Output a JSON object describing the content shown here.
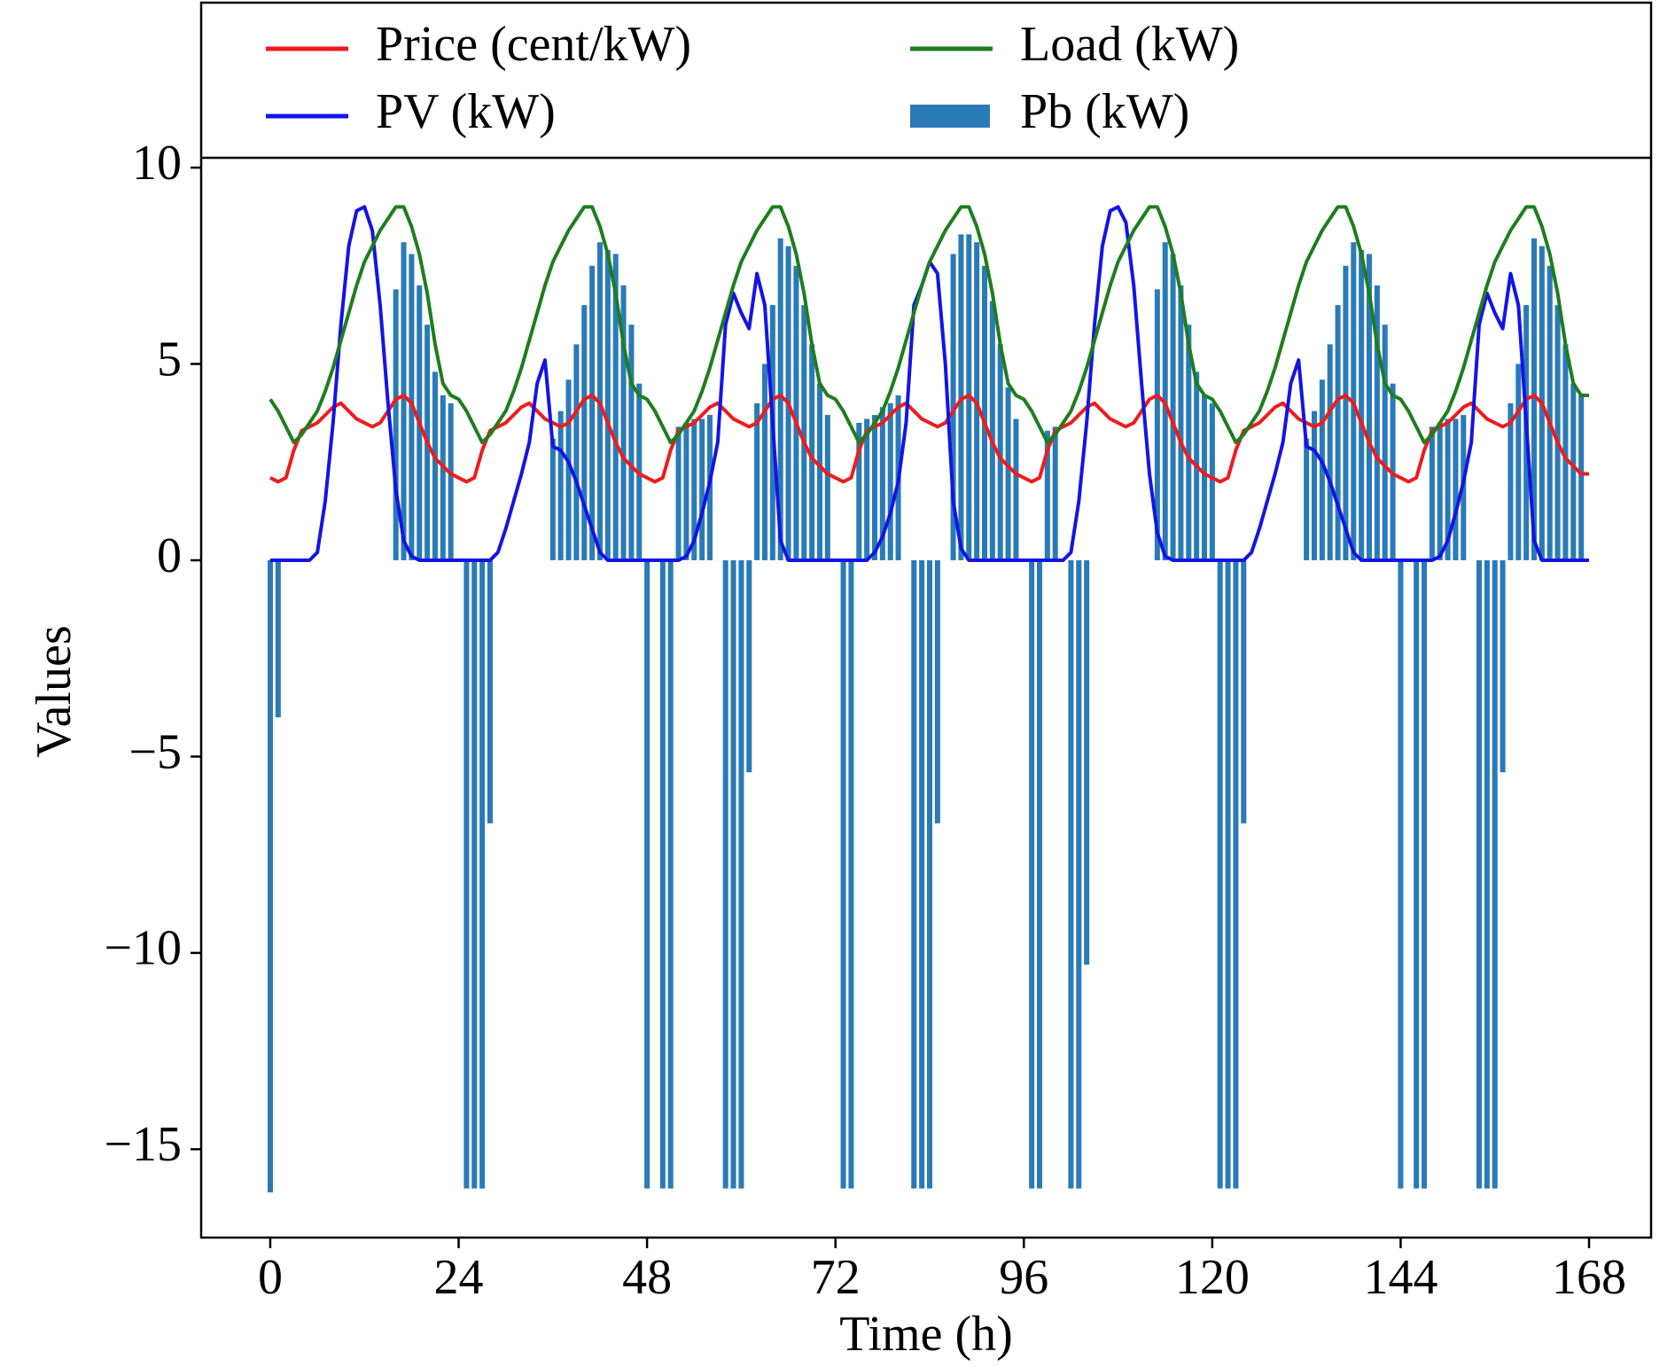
{
  "chart_data": {
    "type": "line",
    "xlabel": "Time (h)",
    "ylabel": "Values",
    "x": [
      0,
      1,
      2,
      3,
      4,
      5,
      6,
      7,
      8,
      9,
      10,
      11,
      12,
      13,
      14,
      15,
      16,
      17,
      18,
      19,
      20,
      21,
      22,
      23,
      24,
      25,
      26,
      27,
      28,
      29,
      30,
      31,
      32,
      33,
      34,
      35,
      36,
      37,
      38,
      39,
      40,
      41,
      42,
      43,
      44,
      45,
      46,
      47,
      48,
      49,
      50,
      51,
      52,
      53,
      54,
      55,
      56,
      57,
      58,
      59,
      60,
      61,
      62,
      63,
      64,
      65,
      66,
      67,
      68,
      69,
      70,
      71,
      72,
      73,
      74,
      75,
      76,
      77,
      78,
      79,
      80,
      81,
      82,
      83,
      84,
      85,
      86,
      87,
      88,
      89,
      90,
      91,
      92,
      93,
      94,
      95,
      96,
      97,
      98,
      99,
      100,
      101,
      102,
      103,
      104,
      105,
      106,
      107,
      108,
      109,
      110,
      111,
      112,
      113,
      114,
      115,
      116,
      117,
      118,
      119,
      120,
      121,
      122,
      123,
      124,
      125,
      126,
      127,
      128,
      129,
      130,
      131,
      132,
      133,
      134,
      135,
      136,
      137,
      138,
      139,
      140,
      141,
      142,
      143,
      144,
      145,
      146,
      147,
      148,
      149,
      150,
      151,
      152,
      153,
      154,
      155,
      156,
      157,
      158,
      159,
      160,
      161,
      162,
      163,
      164,
      165,
      166,
      167,
      168
    ],
    "series": [
      {
        "name": "Price (cent/kW)",
        "color": "#ee1c1c",
        "type": "line",
        "values": [
          2.1,
          2.0,
          2.1,
          2.8,
          3.3,
          3.4,
          3.5,
          3.7,
          3.9,
          4.0,
          3.8,
          3.6,
          3.5,
          3.4,
          3.5,
          3.8,
          4.1,
          4.2,
          4.0,
          3.5,
          3.0,
          2.6,
          2.4,
          2.2,
          2.1,
          2.0,
          2.1,
          2.8,
          3.3,
          3.4,
          3.5,
          3.7,
          3.9,
          4.0,
          3.8,
          3.6,
          3.5,
          3.4,
          3.5,
          3.8,
          4.1,
          4.2,
          4.0,
          3.5,
          3.0,
          2.6,
          2.4,
          2.2,
          2.1,
          2.0,
          2.1,
          2.8,
          3.3,
          3.4,
          3.5,
          3.7,
          3.9,
          4.0,
          3.8,
          3.6,
          3.5,
          3.4,
          3.5,
          3.8,
          4.1,
          4.2,
          4.0,
          3.5,
          3.0,
          2.6,
          2.4,
          2.2,
          2.1,
          2.0,
          2.1,
          2.8,
          3.3,
          3.4,
          3.5,
          3.7,
          3.9,
          4.0,
          3.8,
          3.6,
          3.5,
          3.4,
          3.5,
          3.8,
          4.1,
          4.2,
          4.0,
          3.5,
          3.0,
          2.6,
          2.4,
          2.2,
          2.1,
          2.0,
          2.1,
          2.8,
          3.3,
          3.4,
          3.5,
          3.7,
          3.9,
          4.0,
          3.8,
          3.6,
          3.5,
          3.4,
          3.5,
          3.8,
          4.1,
          4.2,
          4.0,
          3.5,
          3.0,
          2.6,
          2.4,
          2.2,
          2.1,
          2.0,
          2.1,
          2.8,
          3.3,
          3.4,
          3.5,
          3.7,
          3.9,
          4.0,
          3.8,
          3.6,
          3.5,
          3.4,
          3.5,
          3.8,
          4.1,
          4.2,
          4.0,
          3.5,
          3.0,
          2.6,
          2.4,
          2.2,
          2.1,
          2.0,
          2.1,
          2.8,
          3.3,
          3.4,
          3.5,
          3.7,
          3.9,
          4.0,
          3.8,
          3.6,
          3.5,
          3.4,
          3.5,
          3.8,
          4.1,
          4.2,
          4.0,
          3.5,
          3.0,
          2.6,
          2.4,
          2.2,
          2.2
        ]
      },
      {
        "name": "PV (kW)",
        "color": "#1414e6",
        "type": "line",
        "values": [
          0,
          0,
          0,
          0,
          0,
          0,
          0.2,
          1.5,
          3.5,
          6.0,
          8.0,
          8.9,
          9.0,
          8.4,
          6.5,
          4.0,
          1.8,
          0.5,
          0.1,
          0,
          0,
          0,
          0,
          0,
          0,
          0,
          0,
          0,
          0,
          0.2,
          0.8,
          1.5,
          2.2,
          3.0,
          4.5,
          5.1,
          2.9,
          2.8,
          2.5,
          2.0,
          1.4,
          0.8,
          0.2,
          0,
          0,
          0,
          0,
          0,
          0,
          0,
          0,
          0,
          0,
          0.1,
          0.5,
          1.2,
          2.0,
          3.0,
          6.0,
          6.8,
          6.3,
          5.9,
          7.3,
          6.5,
          3.5,
          0.5,
          0,
          0,
          0,
          0,
          0,
          0,
          0,
          0,
          0,
          0,
          0,
          0.2,
          0.6,
          1.2,
          2.0,
          3.5,
          6.5,
          7.0,
          7.6,
          7.3,
          5.0,
          1.5,
          0.3,
          0,
          0,
          0,
          0,
          0,
          0,
          0,
          0,
          0,
          0,
          0,
          0,
          0,
          0.2,
          1.5,
          3.5,
          6.0,
          8.0,
          8.9,
          9.0,
          8.6,
          7.0,
          4.5,
          2.2,
          0.7,
          0.1,
          0,
          0,
          0,
          0,
          0,
          0,
          0,
          0,
          0,
          0,
          0.2,
          0.8,
          1.5,
          2.2,
          3.0,
          4.5,
          5.1,
          2.9,
          2.8,
          2.5,
          2.0,
          1.4,
          0.8,
          0.2,
          0,
          0,
          0,
          0,
          0,
          0,
          0,
          0,
          0,
          0,
          0.1,
          0.5,
          1.2,
          2.0,
          3.0,
          6.0,
          6.8,
          6.3,
          5.9,
          7.3,
          6.5,
          3.5,
          0.5,
          0,
          0,
          0,
          0,
          0,
          0,
          0
        ]
      },
      {
        "name": "Load (kW)",
        "color": "#1e7d1e",
        "type": "line",
        "values": [
          4.1,
          3.8,
          3.4,
          3.0,
          3.2,
          3.5,
          3.8,
          4.3,
          4.9,
          5.6,
          6.3,
          7.0,
          7.6,
          8.0,
          8.4,
          8.7,
          9.0,
          9.0,
          8.5,
          7.8,
          6.8,
          5.5,
          4.5,
          4.2,
          4.1,
          3.8,
          3.4,
          3.0,
          3.2,
          3.5,
          3.8,
          4.3,
          4.9,
          5.6,
          6.3,
          7.0,
          7.6,
          8.0,
          8.4,
          8.7,
          9.0,
          9.0,
          8.5,
          7.8,
          6.8,
          5.5,
          4.5,
          4.2,
          4.1,
          3.8,
          3.4,
          3.0,
          3.2,
          3.5,
          3.8,
          4.3,
          4.9,
          5.6,
          6.3,
          7.0,
          7.6,
          8.0,
          8.4,
          8.7,
          9.0,
          9.0,
          8.5,
          7.8,
          6.8,
          5.5,
          4.5,
          4.2,
          4.1,
          3.8,
          3.4,
          3.0,
          3.2,
          3.5,
          3.8,
          4.3,
          4.9,
          5.6,
          6.3,
          7.0,
          7.6,
          8.0,
          8.4,
          8.7,
          9.0,
          9.0,
          8.5,
          7.8,
          6.8,
          5.5,
          4.5,
          4.2,
          4.1,
          3.8,
          3.4,
          3.0,
          3.2,
          3.5,
          3.8,
          4.3,
          4.9,
          5.6,
          6.3,
          7.0,
          7.6,
          8.0,
          8.4,
          8.7,
          9.0,
          9.0,
          8.5,
          7.8,
          6.8,
          5.5,
          4.5,
          4.2,
          4.1,
          3.8,
          3.4,
          3.0,
          3.2,
          3.5,
          3.8,
          4.3,
          4.9,
          5.6,
          6.3,
          7.0,
          7.6,
          8.0,
          8.4,
          8.7,
          9.0,
          9.0,
          8.5,
          7.8,
          6.8,
          5.5,
          4.5,
          4.2,
          4.1,
          3.8,
          3.4,
          3.0,
          3.2,
          3.5,
          3.8,
          4.3,
          4.9,
          5.6,
          6.3,
          7.0,
          7.6,
          8.0,
          8.4,
          8.7,
          9.0,
          9.0,
          8.5,
          7.8,
          6.8,
          5.5,
          4.5,
          4.2,
          4.2
        ]
      },
      {
        "name": "Pb (kW)",
        "color": "#2a7ab8",
        "type": "bar",
        "values": [
          -16.1,
          -4.0,
          0,
          0,
          0,
          0,
          0,
          0,
          0,
          0,
          0,
          0,
          0,
          0,
          0,
          0,
          6.9,
          8.1,
          7.8,
          7.0,
          6.0,
          4.8,
          4.2,
          4.0,
          0,
          -16,
          -16,
          -16,
          -6.7,
          0,
          0,
          0,
          0,
          0,
          0,
          0,
          3.1,
          3.8,
          4.6,
          5.5,
          6.5,
          7.5,
          8.1,
          7.9,
          7.8,
          7.0,
          6.0,
          4.5,
          -16,
          0,
          -16,
          -16,
          3.4,
          3.5,
          3.6,
          3.6,
          3.7,
          0,
          -16,
          -16,
          -16,
          -5.4,
          4.0,
          5.0,
          6.5,
          8.2,
          8.0,
          7.5,
          6.5,
          5.5,
          4.5,
          3.7,
          0,
          -16,
          -16,
          3.5,
          3.6,
          3.7,
          3.9,
          4.0,
          4.2,
          0,
          -16,
          -16,
          -16,
          -6.7,
          0,
          7.8,
          8.3,
          8.3,
          8.1,
          7.5,
          6.6,
          5.5,
          4.4,
          3.6,
          0,
          -16,
          -16,
          3.3,
          3.4,
          0,
          -16,
          -16,
          -10.3,
          0,
          0,
          0,
          0,
          0,
          0,
          0,
          0,
          6.9,
          8.1,
          7.8,
          7.0,
          6.0,
          4.8,
          4.2,
          4.0,
          -16,
          -16,
          -16,
          -6.7,
          0,
          0,
          0,
          0,
          0,
          0,
          0,
          3.1,
          3.8,
          4.6,
          5.5,
          6.5,
          7.5,
          8.1,
          7.9,
          7.8,
          7.0,
          6.0,
          4.5,
          -16,
          0,
          -16,
          -16,
          3.4,
          3.5,
          3.6,
          3.6,
          3.7,
          0,
          -16,
          -16,
          -16,
          -5.4,
          4.0,
          5.0,
          6.5,
          8.2,
          8.0,
          7.5,
          6.5,
          5.5,
          4.5,
          4.2,
          0
        ]
      }
    ],
    "xlim": [
      -8.8,
      175.9
    ],
    "ylim": [
      -17.25,
      10.25
    ],
    "xticks": [
      0,
      24,
      48,
      72,
      96,
      120,
      144,
      168
    ],
    "yticks": [
      {
        "value": -15,
        "label": "−15"
      },
      {
        "value": -10,
        "label": "−10"
      },
      {
        "value": -5,
        "label": "−5"
      },
      0,
      5,
      10
    ],
    "grid": false
  }
}
